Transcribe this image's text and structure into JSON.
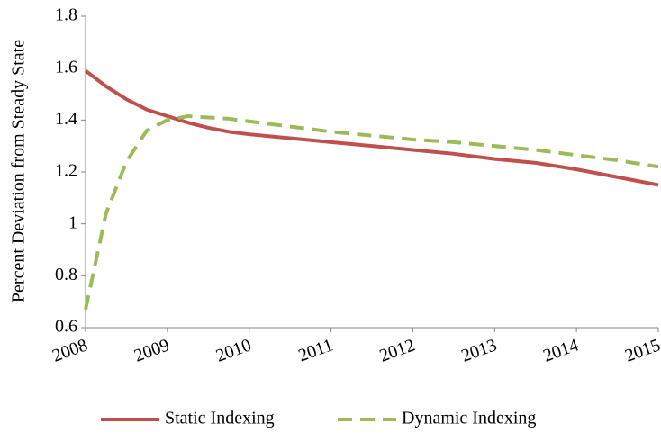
{
  "chart_data": {
    "type": "line",
    "y_label": "Percent Deviation from Steady State",
    "x": [
      2008,
      2008.25,
      2008.5,
      2008.75,
      2009,
      2009.25,
      2009.5,
      2009.75,
      2010,
      2010.5,
      2011,
      2011.5,
      2012,
      2012.5,
      2013,
      2013.5,
      2014,
      2014.5,
      2015
    ],
    "series": [
      {
        "name": "Static Indexing",
        "color": "#c0504d",
        "dashed": false,
        "values": [
          1.59,
          1.53,
          1.48,
          1.44,
          1.415,
          1.39,
          1.37,
          1.355,
          1.345,
          1.33,
          1.315,
          1.3,
          1.285,
          1.27,
          1.25,
          1.235,
          1.21,
          1.18,
          1.15
        ]
      },
      {
        "name": "Dynamic Indexing",
        "color": "#9bbb59",
        "dashed": true,
        "values": [
          0.67,
          1.04,
          1.24,
          1.36,
          1.4,
          1.415,
          1.41,
          1.405,
          1.395,
          1.375,
          1.355,
          1.34,
          1.325,
          1.315,
          1.3,
          1.285,
          1.265,
          1.245,
          1.22
        ]
      }
    ],
    "xlim": [
      2008,
      2015
    ],
    "xticks": [
      2008,
      2009,
      2010,
      2011,
      2012,
      2013,
      2014,
      2015
    ],
    "ylim": [
      0.6,
      1.8
    ],
    "yticks": [
      0.6,
      0.8,
      1,
      1.2,
      1.4,
      1.6,
      1.8
    ],
    "grid": false,
    "legend": "bottom"
  }
}
